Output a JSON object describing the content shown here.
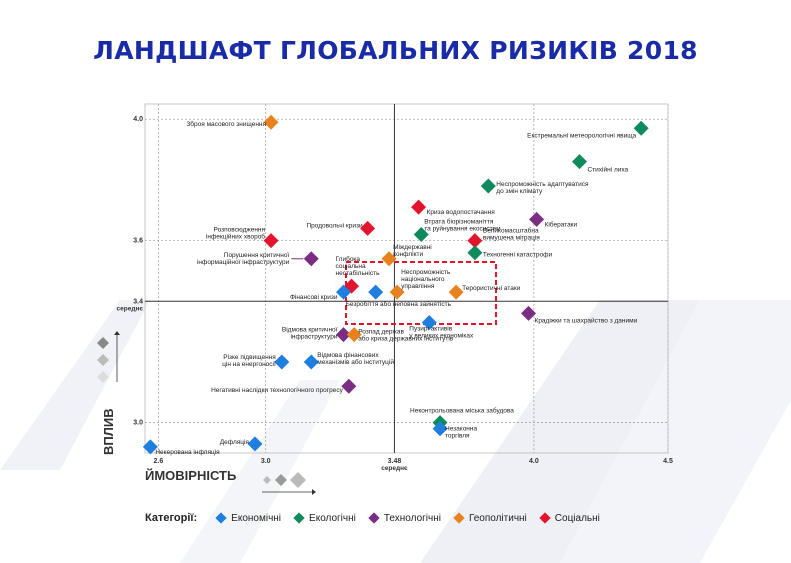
{
  "title": "ЛАНДШАФТ ГЛОБАЛЬНИХ РИЗИКІВ 2018",
  "colors": {
    "title": "#1a2ba8",
    "economic": "#1e7fe0",
    "ecological": "#0f8a5c",
    "technological": "#7b2d84",
    "geopolitical": "#e8821e",
    "social": "#e3142b",
    "highlight": "#e3142b",
    "axis": "#333333"
  },
  "legend": {
    "title": "Категорії:",
    "items": [
      {
        "label": "Економічні",
        "color": "#1e7fe0"
      },
      {
        "label": "Екологічні",
        "color": "#0f8a5c"
      },
      {
        "label": "Технологічні",
        "color": "#7b2d84"
      },
      {
        "label": "Геополітичні",
        "color": "#e8821e"
      },
      {
        "label": "Соціальні",
        "color": "#e3142b"
      }
    ]
  },
  "chart_data": {
    "type": "scatter",
    "xlabel": "ЙМОВІРНІСТЬ",
    "ylabel": "ВПЛИВ",
    "xlim": [
      2.55,
      4.5
    ],
    "ylim": [
      2.9,
      4.05
    ],
    "x_ticks": [
      "2.6",
      "3.0",
      "3.48",
      "4.0",
      "4.5"
    ],
    "x_tick_values": [
      2.6,
      3.0,
      3.48,
      4.0,
      4.5
    ],
    "y_ticks": [
      "4.0",
      "3.6",
      "3.4",
      "3.0"
    ],
    "y_tick_values": [
      4.0,
      3.6,
      3.4,
      3.0
    ],
    "mean_x": 3.48,
    "mean_y": 3.4,
    "mean_x_label": "середнє",
    "mean_y_label": "середнє",
    "grid": true,
    "points": [
      {
        "label": "Зброя масового знищення",
        "x": 3.02,
        "y": 3.99,
        "cat": "geopolitical"
      },
      {
        "label": "Екстремальні метеорологічні явища",
        "x": 4.4,
        "y": 3.97,
        "cat": "ecological"
      },
      {
        "label": "Стихійні лиха",
        "x": 4.17,
        "y": 3.86,
        "cat": "ecological"
      },
      {
        "label": "Неспроможність адаптуватися до змін клімату",
        "x": 3.83,
        "y": 3.78,
        "cat": "ecological"
      },
      {
        "label": "Криза водопостачання",
        "x": 3.57,
        "y": 3.71,
        "cat": "social"
      },
      {
        "label": "Кібератаки",
        "x": 4.01,
        "y": 3.67,
        "cat": "technological"
      },
      {
        "label": "Продовольчі кризи",
        "x": 3.38,
        "y": 3.64,
        "cat": "social"
      },
      {
        "label": "Втрата біорізноманіття та руйнування екосистем",
        "x": 3.58,
        "y": 3.62,
        "cat": "ecological"
      },
      {
        "label": "Великомасштабна вимушена міграція",
        "x": 3.78,
        "y": 3.6,
        "cat": "social"
      },
      {
        "label": "Розповсюдження інфекційних хвороб",
        "x": 3.02,
        "y": 3.6,
        "cat": "social"
      },
      {
        "label": "Техногенні катастрофи",
        "x": 3.78,
        "y": 3.56,
        "cat": "ecological"
      },
      {
        "label": "Порушення критичної інформаційної інфраструктури",
        "x": 3.17,
        "y": 3.54,
        "cat": "technological"
      },
      {
        "label": "Глибока соціальна нестабільність",
        "x": 3.32,
        "y": 3.45,
        "cat": "social"
      },
      {
        "label": "Міждержавні конфлікти",
        "x": 3.46,
        "y": 3.54,
        "cat": "geopolitical"
      },
      {
        "label": "Неспроможність національного управління",
        "x": 3.49,
        "y": 3.43,
        "cat": "geopolitical"
      },
      {
        "label": "Терористичні атаки",
        "x": 3.71,
        "y": 3.43,
        "cat": "geopolitical"
      },
      {
        "label": "Фінансові кризи",
        "x": 3.29,
        "y": 3.43,
        "cat": "economic"
      },
      {
        "label": "Безробіття або неповна зайнятість",
        "x": 3.41,
        "y": 3.43,
        "cat": "economic"
      },
      {
        "label": "Пузирі активів у великих економіках",
        "x": 3.61,
        "y": 3.33,
        "cat": "economic"
      },
      {
        "label": "Крадіжки та шахрайство з даними",
        "x": 3.98,
        "y": 3.36,
        "cat": "technological"
      },
      {
        "label": "Відмова критичної інфраструктури",
        "x": 3.29,
        "y": 3.29,
        "cat": "technological"
      },
      {
        "label": "Розпад держав або криза державних інститутів",
        "x": 3.33,
        "y": 3.29,
        "cat": "geopolitical"
      },
      {
        "label": "Різке підвищення цін на енергоносії",
        "x": 3.06,
        "y": 3.2,
        "cat": "economic"
      },
      {
        "label": "Відмова фінансових механізмів або інституцій",
        "x": 3.17,
        "y": 3.2,
        "cat": "economic"
      },
      {
        "label": "Негативні наслідки технологічного прогресу",
        "x": 3.31,
        "y": 3.12,
        "cat": "technological"
      },
      {
        "label": "Неконтрольована міська забудова",
        "x": 3.65,
        "y": 3.0,
        "cat": "ecological"
      },
      {
        "label": "Незаконна торгівля",
        "x": 3.65,
        "y": 2.98,
        "cat": "economic"
      },
      {
        "label": "Дефляція",
        "x": 2.96,
        "y": 2.93,
        "cat": "economic"
      },
      {
        "label": "Некерована інфляція",
        "x": 2.57,
        "y": 2.92,
        "cat": "economic"
      }
    ]
  }
}
